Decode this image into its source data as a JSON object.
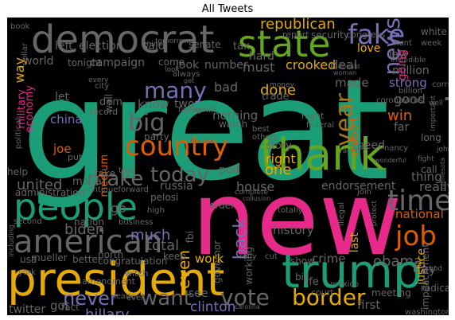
{
  "title": "All Tweets",
  "palette": {
    "teal": "#1b9e77",
    "pink": "#e7298a",
    "green": "#66a61e",
    "orange": "#d95f02",
    "purple": "#7570b3",
    "gold": "#e6ab02",
    "brown": "#a6761d",
    "gray": "#666666"
  },
  "words": [
    {
      "text": "great",
      "color": "#1b9e77"
    },
    {
      "text": "new",
      "color": "#e7298a"
    },
    {
      "text": "president",
      "color": "#e6ab02"
    },
    {
      "text": "trump",
      "color": "#1b9e77"
    },
    {
      "text": "thank",
      "color": "#66a61e"
    },
    {
      "text": "democrat",
      "color": "#666666"
    },
    {
      "text": "people",
      "color": "#1b9e77"
    },
    {
      "text": "state",
      "color": "#66a61e"
    },
    {
      "text": "country",
      "color": "#d95f02"
    },
    {
      "text": "american",
      "color": "#666666"
    },
    {
      "text": "america",
      "color": "#666666"
    },
    {
      "text": "fake",
      "color": "#7570b3"
    },
    {
      "text": "news",
      "color": "#7570b3"
    },
    {
      "text": "big",
      "color": "#666666"
    },
    {
      "text": "year",
      "color": "#a6761d"
    },
    {
      "text": "time",
      "color": "#666666"
    },
    {
      "text": "job",
      "color": "#d95f02"
    },
    {
      "text": "many",
      "color": "#7570b3"
    },
    {
      "text": "today",
      "color": "#666666"
    },
    {
      "text": "make",
      "color": "#666666"
    },
    {
      "text": "vote",
      "color": "#666666"
    },
    {
      "text": "border",
      "color": "#e6ab02"
    },
    {
      "text": "want",
      "color": "#666666"
    },
    {
      "text": "never",
      "color": "#7570b3"
    },
    {
      "text": "republican",
      "color": "#e6ab02"
    },
    {
      "text": "hillary",
      "color": "#7570b3"
    },
    {
      "text": "clinton",
      "color": "#7570b3"
    },
    {
      "text": "back",
      "color": "#7570b3"
    },
    {
      "text": "biden",
      "color": "#666666"
    },
    {
      "text": "united",
      "color": "#666666"
    },
    {
      "text": "one",
      "color": "#e6ab02"
    },
    {
      "text": "right",
      "color": "#e6ab02"
    },
    {
      "text": "even",
      "color": "#e6ab02"
    },
    {
      "text": "day",
      "color": "#666666"
    },
    {
      "text": "much",
      "color": "#7570b3"
    },
    {
      "text": "house",
      "color": "#666666"
    },
    {
      "text": "russia",
      "color": "#666666"
    },
    {
      "text": "crooked",
      "color": "#e6ab02"
    },
    {
      "text": "done",
      "color": "#e6ab02"
    },
    {
      "text": "must",
      "color": "#666666"
    },
    {
      "text": "good",
      "color": "#666666"
    },
    {
      "text": "win",
      "color": "#d95f02"
    },
    {
      "text": "deal",
      "color": "#666666"
    },
    {
      "text": "made",
      "color": "#666666"
    },
    {
      "text": "strong",
      "color": "#7570b3"
    },
    {
      "text": "total",
      "color": "#666666"
    },
    {
      "text": "work",
      "color": "#e6ab02"
    },
    {
      "text": "obama",
      "color": "#666666"
    },
    {
      "text": "history",
      "color": "#666666"
    },
    {
      "text": "crime",
      "color": "#666666"
    },
    {
      "text": "justice",
      "color": "#e6ab02"
    },
    {
      "text": "national",
      "color": "#d95f02"
    },
    {
      "text": "really",
      "color": "#666666"
    },
    {
      "text": "bad",
      "color": "#666666"
    },
    {
      "text": "military",
      "color": "#e7298a"
    },
    {
      "text": "economy",
      "color": "#e7298a"
    },
    {
      "text": "china",
      "color": "#7570b3"
    },
    {
      "text": "election",
      "color": "#666666"
    },
    {
      "text": "campaign",
      "color": "#666666"
    },
    {
      "text": "said",
      "color": "#666666"
    },
    {
      "text": "senate",
      "color": "#666666"
    },
    {
      "text": "tax",
      "color": "#666666"
    },
    {
      "text": "hard",
      "color": "#666666"
    },
    {
      "text": "left",
      "color": "#666666"
    },
    {
      "text": "world",
      "color": "#666666"
    },
    {
      "text": "way",
      "color": "#e6ab02"
    },
    {
      "text": "love",
      "color": "#e6ab02"
    },
    {
      "text": "law",
      "color": "#666666"
    },
    {
      "text": "know",
      "color": "#666666"
    },
    {
      "text": "nothing",
      "color": "#666666"
    },
    {
      "text": "first",
      "color": "#666666"
    },
    {
      "text": "see",
      "color": "#666666"
    },
    {
      "text": "joe",
      "color": "#d95f02"
    },
    {
      "text": "maga",
      "color": "#666666"
    },
    {
      "text": "medium",
      "color": "#d95f02"
    },
    {
      "text": "dem",
      "color": "#666666"
    },
    {
      "text": "support",
      "color": "#d95f02"
    },
    {
      "text": "far",
      "color": "#666666"
    },
    {
      "text": "need",
      "color": "#666666"
    },
    {
      "text": "party",
      "color": "#666666"
    },
    {
      "text": "poll",
      "color": "#666666"
    },
    {
      "text": "story",
      "color": "#666666"
    },
    {
      "text": "endorsement",
      "color": "#666666"
    },
    {
      "text": "trade",
      "color": "#666666"
    },
    {
      "text": "security",
      "color": "#666666"
    },
    {
      "text": "report",
      "color": "#666666"
    },
    {
      "text": "two",
      "color": "#666666"
    },
    {
      "text": "look",
      "color": "#666666"
    },
    {
      "text": "number",
      "color": "#666666"
    },
    {
      "text": "million",
      "color": "#666666"
    },
    {
      "text": "going",
      "color": "#e7298a"
    },
    {
      "text": "last",
      "color": "#e6ab02"
    },
    {
      "text": "go",
      "color": "#666666"
    },
    {
      "text": "impeachment",
      "color": "#666666"
    },
    {
      "text": "working",
      "color": "#666666"
    },
    {
      "text": "governor",
      "color": "#666666"
    },
    {
      "text": "mueller",
      "color": "#666666"
    },
    {
      "text": "fbi",
      "color": "#666666"
    },
    {
      "text": "congress",
      "color": "#666666"
    },
    {
      "text": "white",
      "color": "#666666"
    },
    {
      "text": "take",
      "color": "#666666"
    },
    {
      "text": "wall",
      "color": "#666666"
    },
    {
      "text": "record",
      "color": "#666666"
    },
    {
      "text": "watch",
      "color": "#666666"
    },
    {
      "text": "nation",
      "color": "#666666"
    },
    {
      "text": "north",
      "color": "#666666"
    },
    {
      "text": "better",
      "color": "#666666"
    },
    {
      "text": "got",
      "color": "#666666"
    },
    {
      "text": "twitter",
      "color": "#666666"
    },
    {
      "text": "fact",
      "color": "#666666"
    },
    {
      "text": "call",
      "color": "#666666"
    },
    {
      "text": "thing",
      "color": "#666666"
    },
    {
      "text": "life",
      "color": "#666666"
    },
    {
      "text": "meeting",
      "color": "#666666"
    },
    {
      "text": "show",
      "color": "#666666"
    },
    {
      "text": "pelosi",
      "color": "#666666"
    },
    {
      "text": "help",
      "color": "#666666"
    },
    {
      "text": "administration",
      "color": "#666666"
    },
    {
      "text": "order",
      "color": "#666666"
    },
    {
      "text": "high",
      "color": "#666666"
    },
    {
      "text": "family",
      "color": "#666666"
    },
    {
      "text": "city",
      "color": "#666666"
    },
    {
      "text": "keep",
      "color": "#666666"
    },
    {
      "text": "let",
      "color": "#666666"
    },
    {
      "text": "tonight",
      "color": "#666666"
    },
    {
      "text": "come",
      "color": "#666666"
    },
    {
      "text": "best",
      "color": "#666666"
    },
    {
      "text": "others",
      "color": "#666666"
    },
    {
      "text": "night",
      "color": "#666666"
    },
    {
      "text": "long",
      "color": "#666666"
    },
    {
      "text": "rating",
      "color": "#666666"
    },
    {
      "text": "nancy",
      "color": "#666666"
    },
    {
      "text": "coronavirus",
      "color": "#666666"
    },
    {
      "text": "billion",
      "color": "#666666"
    },
    {
      "text": "corrupt",
      "color": "#666666"
    },
    {
      "text": "radical",
      "color": "#666666"
    },
    {
      "text": "usa",
      "color": "#666666"
    },
    {
      "text": "amendment",
      "color": "#666666"
    },
    {
      "text": "leader",
      "color": "#666666"
    },
    {
      "text": "another",
      "color": "#666666"
    },
    {
      "text": "washington",
      "color": "#666666"
    },
    {
      "text": "court",
      "color": "#666666"
    },
    {
      "text": "mexico",
      "color": "#666666"
    },
    {
      "text": "witch",
      "color": "#666666"
    },
    {
      "text": "ever",
      "color": "#666666"
    },
    {
      "text": "congratulation",
      "color": "#666666"
    },
    {
      "text": "continueforward",
      "color": "#666666"
    },
    {
      "text": "true",
      "color": "#666666"
    },
    {
      "text": "join",
      "color": "#666666"
    },
    {
      "text": "illegal",
      "color": "#666666"
    },
    {
      "text": "cut",
      "color": "#666666"
    },
    {
      "text": "rally",
      "color": "#666666"
    },
    {
      "text": "business",
      "color": "#666666"
    },
    {
      "text": "book",
      "color": "#666666"
    },
    {
      "text": "dollar",
      "color": "#666666"
    },
    {
      "text": "york",
      "color": "#666666"
    },
    {
      "text": "bill",
      "color": "#666666"
    },
    {
      "text": "federal",
      "color": "#666666"
    },
    {
      "text": "schiff",
      "color": "#666666"
    },
    {
      "text": "money",
      "color": "#666666"
    },
    {
      "text": "every",
      "color": "#666666"
    },
    {
      "text": "put",
      "color": "#666666"
    },
    {
      "text": "second",
      "color": "#666666"
    },
    {
      "text": "including",
      "color": "#666666"
    },
    {
      "text": "political",
      "color": "#666666"
    },
    {
      "text": "important",
      "color": "#666666"
    },
    {
      "text": "incredible",
      "color": "#666666"
    },
    {
      "text": "woman",
      "color": "#666666"
    },
    {
      "text": "hunt",
      "color": "#666666"
    },
    {
      "text": "week",
      "color": "#666666"
    },
    {
      "text": "totally",
      "color": "#666666"
    },
    {
      "text": "complete",
      "color": "#666666"
    },
    {
      "text": "florida",
      "color": "#666666"
    },
    {
      "text": "protect",
      "color": "#666666"
    },
    {
      "text": "think",
      "color": "#666666"
    },
    {
      "text": "always",
      "color": "#666666"
    },
    {
      "text": "tomorrow",
      "color": "#666666"
    },
    {
      "text": "state",
      "color": "#666666"
    },
    {
      "text": "well",
      "color": "#666666"
    },
    {
      "text": "minnesota",
      "color": "#666666"
    },
    {
      "text": "john",
      "color": "#666666"
    },
    {
      "text": "fight",
      "color": "#666666"
    },
    {
      "text": "god",
      "color": "#666666"
    },
    {
      "text": "donald",
      "color": "#666666"
    },
    {
      "text": "look",
      "color": "#666666"
    },
    {
      "text": "get",
      "color": "#666666"
    },
    {
      "text": "carolina",
      "color": "#666666"
    },
    {
      "text": "collusion",
      "color": "#666666"
    },
    {
      "text": "wonderful",
      "color": "#666666"
    }
  ]
}
